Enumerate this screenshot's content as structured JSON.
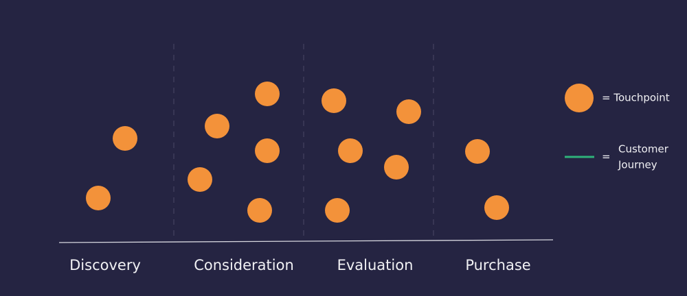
{
  "colors": {
    "background": "#252442",
    "touchpoint": "#f3923a",
    "journey": "#2fb37a",
    "baseline": "#d8d8e0",
    "divider": "#4a4966",
    "text": "#f1f1f4"
  },
  "stages": [
    {
      "id": "discovery",
      "label": "Discovery"
    },
    {
      "id": "consideration",
      "label": "Consideration"
    },
    {
      "id": "evaluation",
      "label": "Evaluation"
    },
    {
      "id": "purchase",
      "label": "Purchase"
    }
  ],
  "touchpoint_counts": {
    "discovery": 2,
    "consideration": 5,
    "evaluation": 5,
    "purchase": 2
  },
  "legend": {
    "touchpoint_label": "= Touchpoint",
    "journey_equals": "=",
    "journey_label_line1": "Customer",
    "journey_label_line2": "Journey"
  }
}
